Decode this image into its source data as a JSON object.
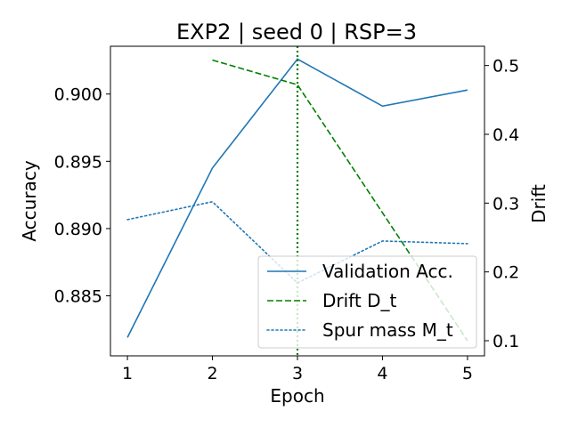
{
  "chart_data": {
    "type": "line",
    "title": "EXP2 | seed 0 | RSP=3",
    "xlabel": "Epoch",
    "ylabel_left": "Accuracy",
    "ylabel_right": "Drift",
    "x": [
      1,
      2,
      3,
      4,
      5
    ],
    "x_ticks": [
      {
        "value": 1,
        "label": "1"
      },
      {
        "value": 2,
        "label": "2"
      },
      {
        "value": 3,
        "label": "3"
      },
      {
        "value": 4,
        "label": "4"
      },
      {
        "value": 5,
        "label": "5"
      }
    ],
    "xlim": [
      0.8,
      5.2
    ],
    "ylim_left": [
      0.88054,
      0.90355
    ],
    "ylim_right": [
      0.078,
      0.528
    ],
    "left_ticks": [
      {
        "value": 0.885,
        "label": "0.885"
      },
      {
        "value": 0.89,
        "label": "0.890"
      },
      {
        "value": 0.895,
        "label": "0.895"
      },
      {
        "value": 0.9,
        "label": "0.900"
      }
    ],
    "right_ticks": [
      {
        "value": 0.1,
        "label": "0.1"
      },
      {
        "value": 0.2,
        "label": "0.2"
      },
      {
        "value": 0.3,
        "label": "0.3"
      },
      {
        "value": 0.4,
        "label": "0.4"
      },
      {
        "value": 0.5,
        "label": "0.5"
      }
    ],
    "series": [
      {
        "name": "Validation Acc.",
        "axis": "left",
        "color": "#1f77b4",
        "style": "solid",
        "x": [
          1,
          2,
          3,
          4,
          5
        ],
        "values": [
          0.8819,
          0.8945,
          0.9026,
          0.8991,
          0.9003
        ]
      },
      {
        "name": "Drift D_t",
        "axis": "right",
        "color": "#008000",
        "style": "dashed",
        "x": [
          2,
          3,
          5
        ],
        "values": [
          0.508,
          0.472,
          0.1
        ]
      },
      {
        "name": "Spur mass M_t",
        "axis": "right",
        "color": "#1f77b4",
        "style": "dotted",
        "x": [
          1,
          2,
          3,
          4,
          5
        ],
        "values": [
          0.276,
          0.302,
          0.184,
          0.245,
          0.241
        ]
      }
    ],
    "vline": {
      "x": 3,
      "color": "#008000",
      "style": "dotted"
    },
    "legend": {
      "position": "lower-right",
      "entries": [
        {
          "label": "Validation Acc.",
          "color": "#1f77b4",
          "style": "solid"
        },
        {
          "label": "Drift D_t",
          "color": "#008000",
          "style": "dashed"
        },
        {
          "label": "Spur mass M_t",
          "color": "#1f77b4",
          "style": "dotted"
        }
      ]
    },
    "grid": false
  }
}
